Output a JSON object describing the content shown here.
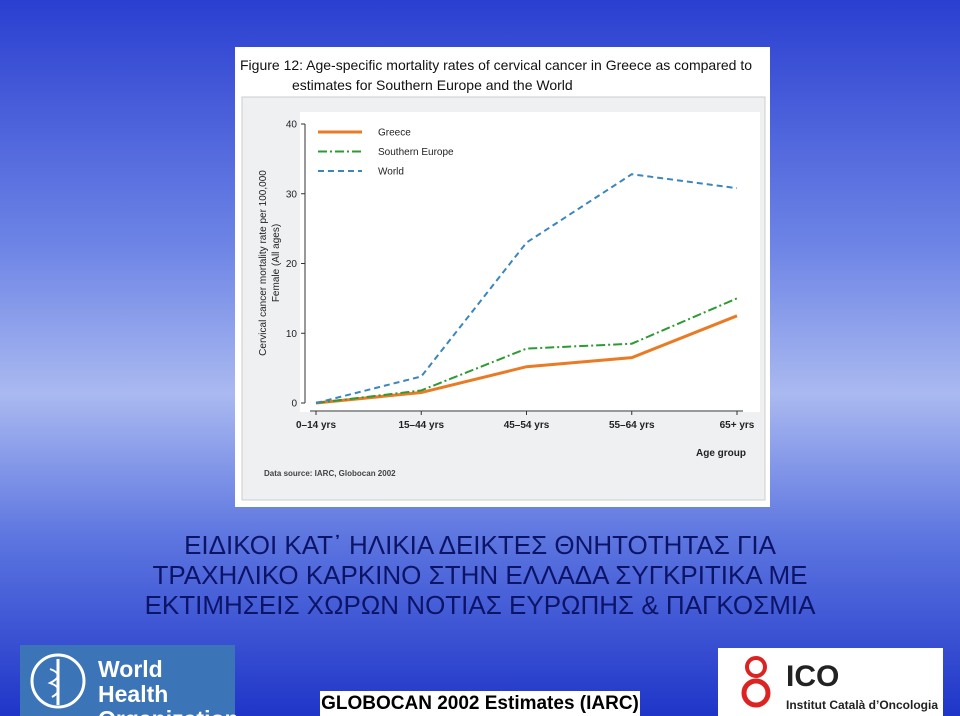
{
  "chart_data": {
    "type": "line",
    "title": "Figure 12:  Age-specific mortality rates of cervical cancer in Greece as compared to estimates for Southern Europe and the World",
    "ylabel": [
      "Cervical cancer mortality rate per 100,000",
      "Female (All ages)"
    ],
    "xlabel": "Age group",
    "source": "Data source: IARC, Globocan 2002",
    "categories": [
      "0–14 yrs",
      "15–44 yrs",
      "45–54 yrs",
      "55–64 yrs",
      "65+ yrs"
    ],
    "series": [
      {
        "name": "Greece",
        "color": "#ea7b25",
        "values": [
          0,
          1.5,
          5.2,
          6.5,
          12.5
        ]
      },
      {
        "name": "Southern Europe",
        "color": "#2e9a34",
        "values": [
          0,
          1.8,
          7.8,
          8.5,
          15
        ]
      },
      {
        "name": "World",
        "color": "#3b86bd",
        "values": [
          0,
          3.8,
          23,
          32.8,
          30.8
        ]
      }
    ],
    "ylim": [
      0,
      40
    ],
    "yticks": [
      0,
      10,
      20,
      30,
      40
    ],
    "legend": "upper left"
  },
  "heading": [
    "ΕΙΔΙΚΟΙ ΚΑΤ᾽ ΗΛΙΚΙΑ ΔΕΙΚΤΕΣ ΘΝΗΤΟΤΗΤΑΣ ΓΙΑ",
    "ΤΡΑΧΗΛΙΚΟ ΚΑΡΚΙΝΟ ΣΤΗΝ ΕΛΛΑΔΑ ΣΥΓΚΡΙΤΙΚΑ ΜΕ",
    "ΕΚΤΙΜΗΣΕΙΣ ΧΩΡΩΝ ΝΟΤΙΑΣ ΕΥΡΩΠΗΣ & ΠΑΓΚΟΣΜΙΑ"
  ],
  "footer": "GLOBOCAN 2002 Estimates (IARC)",
  "who_logo": [
    "World Health",
    "Organization"
  ],
  "ico_logo": {
    "name": "ICO",
    "subtitle": "Institut Català d’Oncologia"
  }
}
